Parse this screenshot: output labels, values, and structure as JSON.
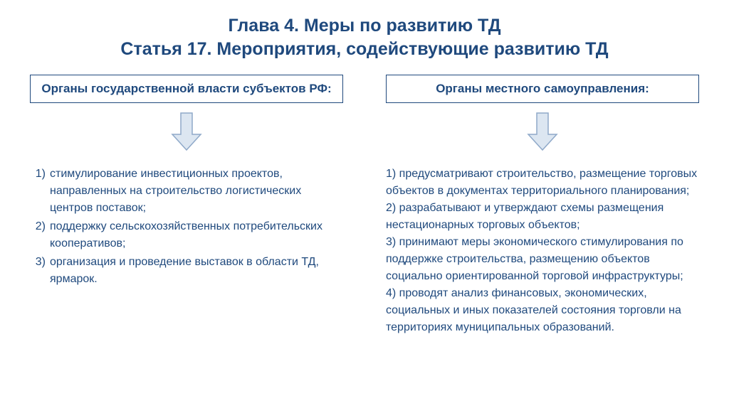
{
  "colors": {
    "accent": "#1f497d",
    "arrow_fill": "#dce6f1",
    "arrow_stroke": "#8fa9c9",
    "text": "#000000",
    "border": "#1f497d"
  },
  "typography": {
    "title_fontsize": 25,
    "header_fontsize": 17,
    "body_fontsize": 16
  },
  "title": {
    "line1": "Глава 4. Меры по развитию ТД",
    "line2": "Статья 17. Мероприятия, содействующие развитию ТД"
  },
  "left": {
    "header": "Органы государственной власти субъектов РФ:",
    "items": [
      {
        "num": "1)",
        "text": "стимулирование инвестиционных проектов, направленных на строительство логистических центров поставок;"
      },
      {
        "num": "2)",
        "text": "поддержку сельскохозяйственных потребительских кооперативов;"
      },
      {
        "num": "3)",
        "text": "организация и проведение выставок в области ТД, ярмарок."
      }
    ]
  },
  "right": {
    "header": "Органы местного самоуправления:",
    "items": [
      {
        "num": "1)",
        "text": "предусматривают строительство, размещение торговых объектов в документах территориального планирования;"
      },
      {
        "num": "2)",
        "text": "разрабатывают и утверждают схемы размещения нестационарных торговых объектов;"
      },
      {
        "num": "3)",
        "text": "принимают меры экономического стимулирования по поддержке строительства, размещению объектов социально ориентированной торговой инфраструктуры;"
      },
      {
        "num": "4)",
        "text": "проводят анализ финансовых, экономических, социальных и иных показателей состояния торговли на территориях муниципальных образований."
      }
    ]
  },
  "arrow": {
    "width": 44,
    "height": 56
  }
}
